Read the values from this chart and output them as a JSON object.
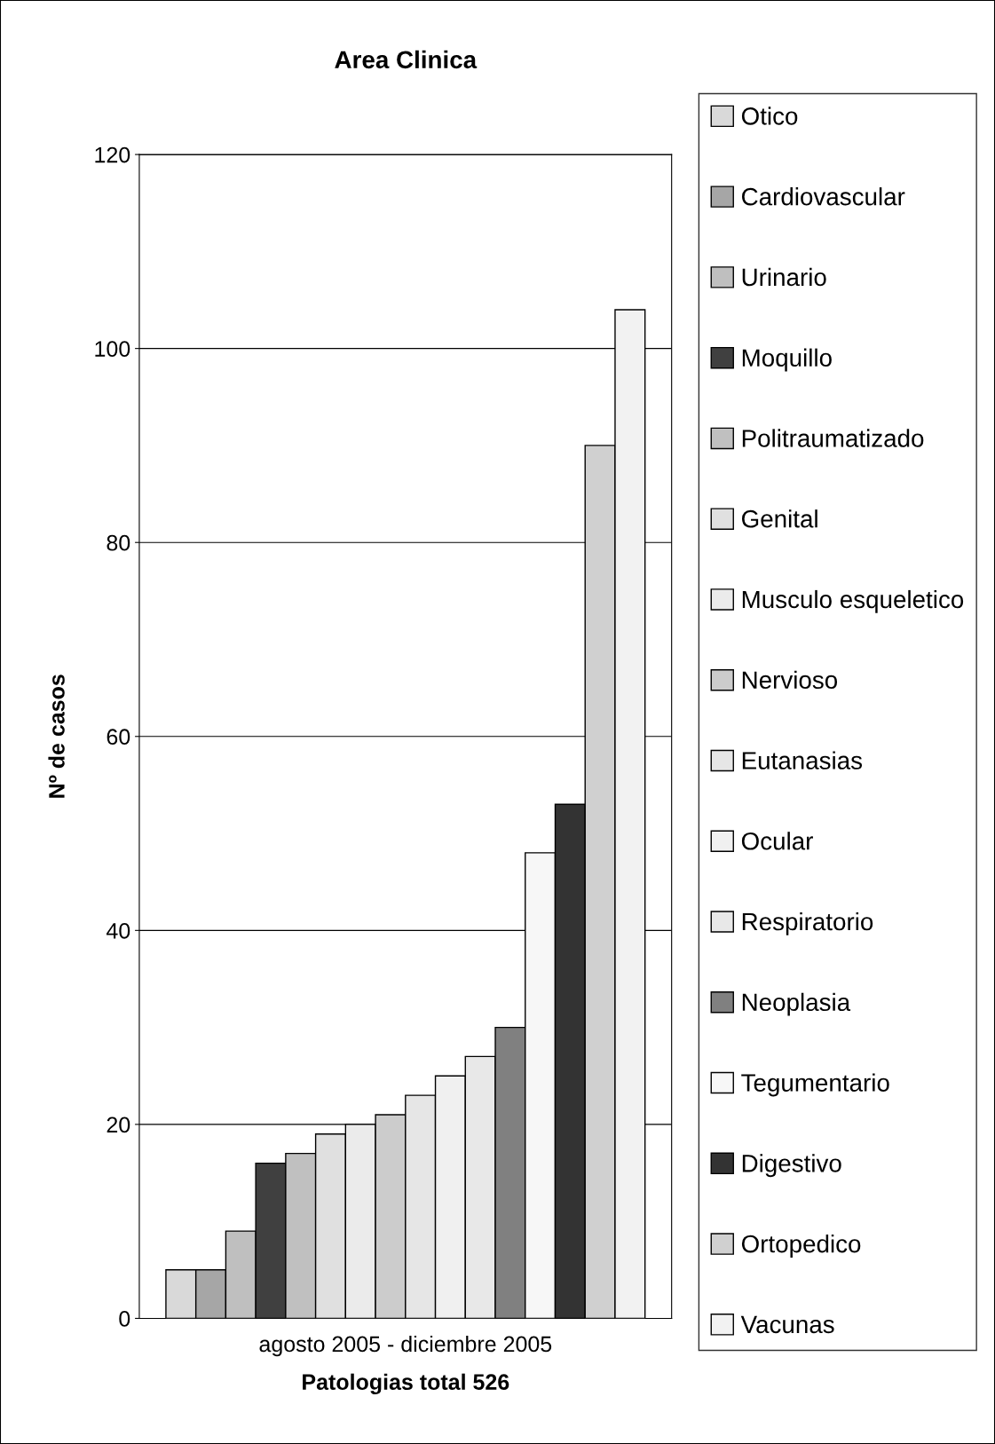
{
  "chart_data": {
    "type": "bar",
    "title": "Area Clinica",
    "xlabel": "Patologias total 526",
    "ylabel": "Nº de casos",
    "categories": [
      "agosto 2005 - diciembre 2005"
    ],
    "series": [
      {
        "name": "Otico",
        "color": "#d9d9d9",
        "values": [
          5
        ]
      },
      {
        "name": "Cardiovascular",
        "color": "#a6a6a6",
        "values": [
          5
        ]
      },
      {
        "name": "Urinario",
        "color": "#bfbfbf",
        "values": [
          9
        ]
      },
      {
        "name": "Moquillo",
        "color": "#404040",
        "values": [
          16
        ]
      },
      {
        "name": "Politraumatizado",
        "color": "#c0c0c0",
        "values": [
          17
        ]
      },
      {
        "name": "Genital",
        "color": "#e0e0e0",
        "values": [
          19
        ]
      },
      {
        "name": "Musculo esqueletico",
        "color": "#ebebeb",
        "values": [
          20
        ]
      },
      {
        "name": "Nervioso",
        "color": "#cccccc",
        "values": [
          21
        ]
      },
      {
        "name": "Eutanasias",
        "color": "#e6e6e6",
        "values": [
          23
        ]
      },
      {
        "name": "Ocular",
        "color": "#f0f0f0",
        "values": [
          25
        ]
      },
      {
        "name": "Respiratorio",
        "color": "#e8e8e8",
        "values": [
          27
        ]
      },
      {
        "name": "Neoplasia",
        "color": "#808080",
        "values": [
          30
        ]
      },
      {
        "name": "Tegumentario",
        "color": "#f7f7f7",
        "values": [
          48
        ]
      },
      {
        "name": "Digestivo",
        "color": "#333333",
        "values": [
          53
        ]
      },
      {
        "name": "Ortopedico",
        "color": "#d0d0d0",
        "values": [
          90
        ]
      },
      {
        "name": "Vacunas",
        "color": "#f2f2f2",
        "values": [
          104
        ]
      }
    ],
    "ylim": [
      0,
      120
    ],
    "yticks": [
      0,
      20,
      40,
      60,
      80,
      100,
      120
    ],
    "grid": "y",
    "legend": "right"
  }
}
